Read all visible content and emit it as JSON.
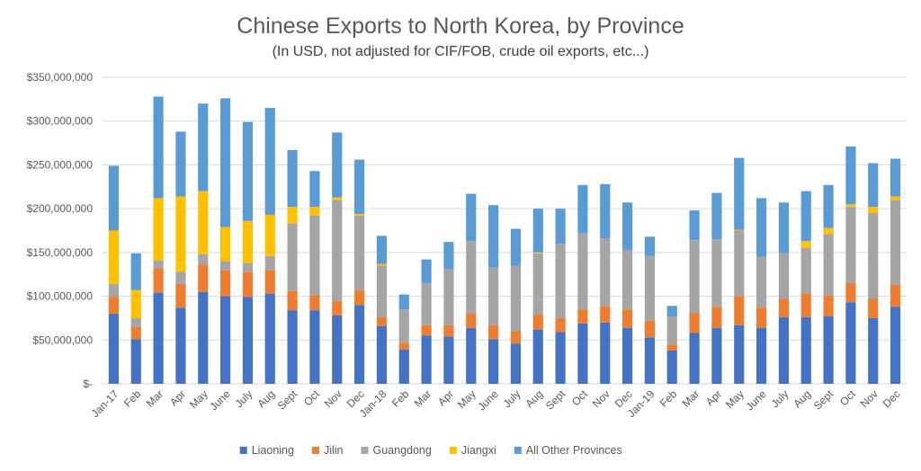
{
  "chart_data": {
    "type": "bar",
    "stacked": true,
    "title": "Chinese Exports to North Korea, by Province",
    "subtitle": "(In USD, not adjusted for CIF/FOB, crude oil exports, etc...)",
    "ylim": [
      0,
      350000000
    ],
    "yticks": [
      0,
      50000000,
      100000000,
      150000000,
      200000000,
      250000000,
      300000000,
      350000000
    ],
    "ytick_labels": [
      "$-",
      "$50,000,000",
      "$100,000,000",
      "$150,000,000",
      "$200,000,000",
      "$250,000,000",
      "$300,000,000",
      "$350,000,000"
    ],
    "grid": true,
    "legend_position": "bottom",
    "categories": [
      "Jan-17",
      "Feb",
      "Mar",
      "Apr",
      "May",
      "June",
      "July",
      "Aug",
      "Sept",
      "Oct",
      "Nov",
      "Dec",
      "Jan-18",
      "Feb",
      "Mar",
      "Apr",
      "May",
      "June",
      "July",
      "Aug",
      "Sept",
      "Oct",
      "Nov",
      "Dec",
      "Jan-19",
      "Feb",
      "Mar",
      "Apr",
      "May",
      "June",
      "July",
      "Aug",
      "Sept",
      "Oct",
      "Nov",
      "Dec"
    ],
    "series": [
      {
        "name": "Liaoning",
        "color": "#4472C4",
        "values": [
          80000000,
          51000000,
          104000000,
          87000000,
          105000000,
          100000000,
          99000000,
          103000000,
          84000000,
          84000000,
          78000000,
          90000000,
          66000000,
          39000000,
          55000000,
          54000000,
          64000000,
          51000000,
          46000000,
          62000000,
          59000000,
          69000000,
          70000000,
          64000000,
          53000000,
          38000000,
          58000000,
          64000000,
          67000000,
          64000000,
          76000000,
          76000000,
          77000000,
          93000000,
          75000000,
          88000000
        ]
      },
      {
        "name": "Jilin",
        "color": "#ED7D31",
        "values": [
          19000000,
          14000000,
          28000000,
          27000000,
          31000000,
          30000000,
          29000000,
          27000000,
          22000000,
          17000000,
          16000000,
          17000000,
          10000000,
          8000000,
          12000000,
          13000000,
          16000000,
          16000000,
          14000000,
          17000000,
          16000000,
          16000000,
          19000000,
          21000000,
          19000000,
          7000000,
          23000000,
          24000000,
          33000000,
          23000000,
          21000000,
          27000000,
          24000000,
          22000000,
          22000000,
          25000000
        ]
      },
      {
        "name": "Guangdong",
        "color": "#A5A5A5",
        "values": [
          15000000,
          10000000,
          9000000,
          14000000,
          12000000,
          10000000,
          10000000,
          16000000,
          77000000,
          91000000,
          116000000,
          85000000,
          59000000,
          38000000,
          48000000,
          64000000,
          83000000,
          66000000,
          75000000,
          70000000,
          85000000,
          87000000,
          77000000,
          68000000,
          74000000,
          32000000,
          83000000,
          77000000,
          75000000,
          58000000,
          52000000,
          52000000,
          70000000,
          87000000,
          98000000,
          97000000
        ]
      },
      {
        "name": "Jiangxi",
        "color": "#FFC000",
        "values": [
          61000000,
          32000000,
          71000000,
          86000000,
          72000000,
          39000000,
          48000000,
          47000000,
          19000000,
          10000000,
          3000000,
          2000000,
          2000000,
          0,
          0,
          0,
          0,
          0,
          0,
          1000000,
          0,
          0,
          0,
          0,
          0,
          0,
          0,
          0,
          1000000,
          0,
          0,
          8000000,
          7000000,
          3000000,
          7000000,
          4000000
        ]
      },
      {
        "name": "All Other Provinces",
        "color": "#5B9BD5",
        "values": [
          74000000,
          42000000,
          116000000,
          74000000,
          100000000,
          147000000,
          113000000,
          122000000,
          65000000,
          41000000,
          74000000,
          62000000,
          32000000,
          17000000,
          27000000,
          31000000,
          54000000,
          71000000,
          42000000,
          50000000,
          40000000,
          55000000,
          62000000,
          54000000,
          22000000,
          12000000,
          34000000,
          53000000,
          82000000,
          67000000,
          58000000,
          57000000,
          49000000,
          66000000,
          50000000,
          43000000
        ]
      }
    ]
  }
}
